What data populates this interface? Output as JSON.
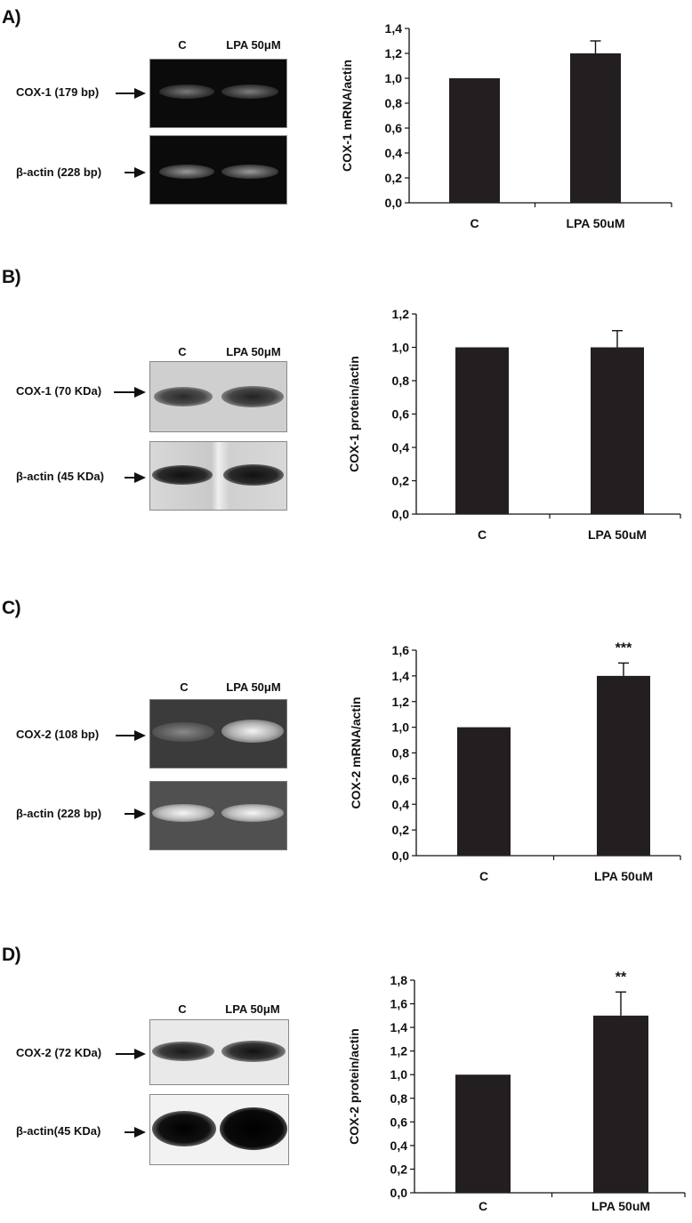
{
  "panels": [
    {
      "label": "A)",
      "lanes": [
        "C",
        "LPA 50μM"
      ],
      "blots": [
        {
          "label": "COX-1 (179 bp)"
        },
        {
          "label": "β-actin (228 bp)"
        }
      ]
    },
    {
      "label": "B)",
      "lanes": [
        "C",
        "LPA 50μM"
      ],
      "blots": [
        {
          "label": "COX-1 (70 KDa)"
        },
        {
          "label": "β-actin (45 KDa)"
        }
      ]
    },
    {
      "label": "C)",
      "lanes": [
        "C",
        "LPA 50μM"
      ],
      "blots": [
        {
          "label": "COX-2 (108 bp)"
        },
        {
          "label": "β-actin (228 bp)"
        }
      ]
    },
    {
      "label": "D)",
      "lanes": [
        "C",
        "LPA 50μM"
      ],
      "blots": [
        {
          "label": "COX-2 (72 KDa)"
        },
        {
          "label": "β-actin(45 KDa)"
        }
      ]
    }
  ],
  "chart_data": [
    {
      "type": "bar",
      "categories": [
        "C",
        "LPA 50uM"
      ],
      "values": [
        1.0,
        1.2
      ],
      "errors": [
        0,
        0.1
      ],
      "annotations": [
        "",
        ""
      ],
      "ylabel": "COX-1 mRNA/actin",
      "ylim": [
        0,
        1.4
      ],
      "yticks": [
        "0,0",
        "0,2",
        "0,4",
        "0,6",
        "0,8",
        "1,0",
        "1,2",
        "1,4"
      ],
      "grid": false,
      "bar_color": "#231f20"
    },
    {
      "type": "bar",
      "categories": [
        "C",
        "LPA 50uM"
      ],
      "values": [
        1.0,
        1.0
      ],
      "errors": [
        0,
        0.1
      ],
      "annotations": [
        "",
        ""
      ],
      "ylabel": "COX-1 protein/actin",
      "ylim": [
        0,
        1.2
      ],
      "yticks": [
        "0,0",
        "0,2",
        "0,4",
        "0,6",
        "0,8",
        "1,0",
        "1,2"
      ],
      "grid": false,
      "bar_color": "#231f20"
    },
    {
      "type": "bar",
      "categories": [
        "C",
        "LPA 50uM"
      ],
      "values": [
        1.0,
        1.4
      ],
      "errors": [
        0,
        0.1
      ],
      "annotations": [
        "",
        "***"
      ],
      "ylabel": "COX-2 mRNA/actin",
      "ylim": [
        0,
        1.6
      ],
      "yticks": [
        "0,0",
        "0,2",
        "0,4",
        "0,6",
        "0,8",
        "1,0",
        "1,2",
        "1,4",
        "1,6"
      ],
      "grid": false,
      "bar_color": "#231f20"
    },
    {
      "type": "bar",
      "categories": [
        "C",
        "LPA 50uM"
      ],
      "values": [
        1.0,
        1.5
      ],
      "errors": [
        0,
        0.2
      ],
      "annotations": [
        "",
        "**"
      ],
      "ylabel": "COX-2 protein/actin",
      "ylim": [
        0,
        1.8
      ],
      "yticks": [
        "0,0",
        "0,2",
        "0,4",
        "0,6",
        "0,8",
        "1,0",
        "1,2",
        "1,4",
        "1,6",
        "1,8"
      ],
      "grid": false,
      "bar_color": "#231f20"
    }
  ]
}
